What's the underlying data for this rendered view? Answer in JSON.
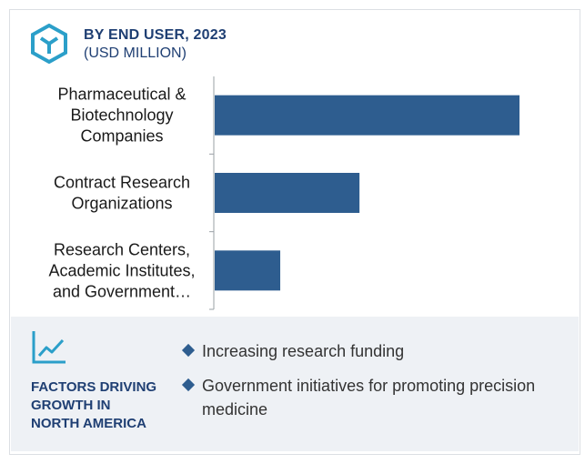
{
  "header": {
    "title": "BY END USER, 2023",
    "subtitle": "(USD MILLION)"
  },
  "chart_data": {
    "type": "bar",
    "orientation": "horizontal",
    "categories": [
      [
        "Pharmaceutical &",
        "Biotechnology",
        "Companies"
      ],
      [
        "Contract Research",
        "Organizations"
      ],
      [
        "Research Centers,",
        "Academic Institutes,",
        "and Government…"
      ]
    ],
    "values": [
      100,
      47.5,
      21.5
    ],
    "title": "BY END USER, 2023",
    "subtitle": "(USD MILLION)",
    "grid": false,
    "bar_color": "#2e5d8f"
  },
  "footer": {
    "title_lines": [
      "FACTORS DRIVING",
      "GROWTH IN",
      "NORTH AMERICA"
    ],
    "factors": [
      "Increasing research funding",
      "Government initiatives for promoting precision medicine"
    ],
    "icon": "trend-line-icon",
    "logo_icon": "cube-logo-icon"
  },
  "colors": {
    "accent": "#2e5d8f",
    "title": "#1f3f73",
    "logo": "#2b9fc9",
    "panel": "#eef1f5"
  }
}
